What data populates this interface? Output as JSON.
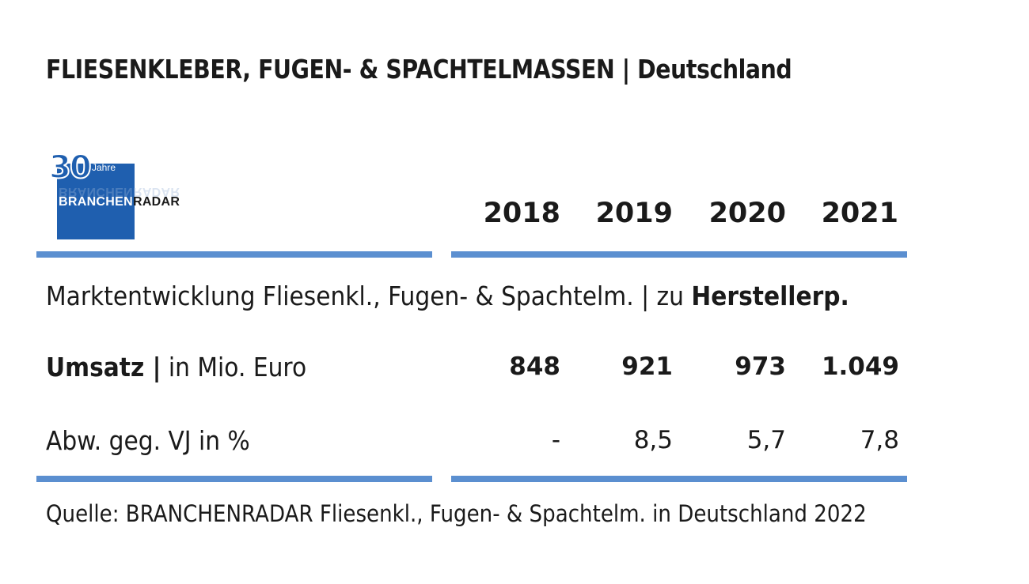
{
  "title": {
    "main": "FLIESENKLEBER, FUGEN- & SPACHTELMASSEN",
    "separator": "|",
    "region": "Deutschland"
  },
  "logo": {
    "number": "30",
    "jahre": "Jahre",
    "word_part1": "BRANCHEN",
    "word_part2": "RADAR"
  },
  "table": {
    "years": [
      "2018",
      "2019",
      "2020",
      "2021"
    ],
    "section_label": "Marktentwicklung Fliesenkl., Fugen- & Spachtelm. | zu ",
    "section_label_bold": "Herstellerp.",
    "rows": [
      {
        "label_bold": "Umsatz |",
        "label": " in Mio. Euro",
        "values": [
          "848",
          "921",
          "973",
          "1.049"
        ]
      },
      {
        "label": "Abw. geg. VJ in %",
        "values": [
          "-",
          "8,5",
          "5,7",
          "7,8"
        ]
      }
    ]
  },
  "source": "Quelle: BRANCHENRADAR Fliesenkl., Fugen- & Spachtelm. in Deutschland 2022",
  "colors": {
    "rule": "#5b8fd0",
    "logo_blue": "#1f5faf"
  }
}
